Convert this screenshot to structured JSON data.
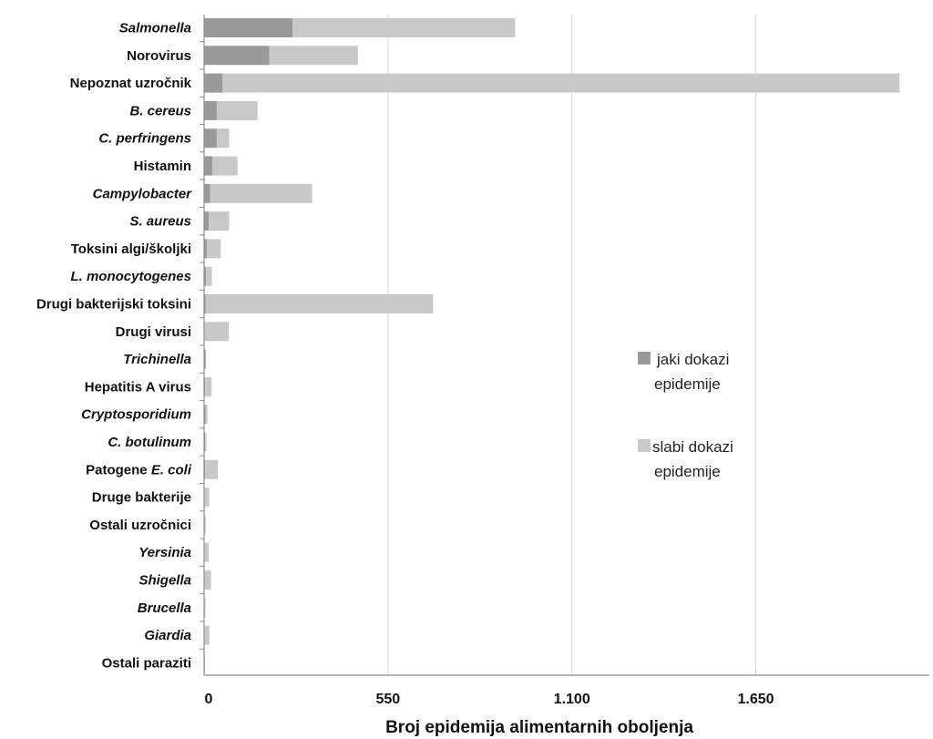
{
  "chart_data": {
    "type": "bar",
    "orientation": "horizontal",
    "stacked": true,
    "xlabel": "Broj epidemija alimentarnih oboljenja",
    "xlim": [
      0,
      2100
    ],
    "xticks": [
      {
        "value": 0,
        "label": "0"
      },
      {
        "value": 550,
        "label": "550"
      },
      {
        "value": 1100,
        "label": "1.100"
      },
      {
        "value": 1650,
        "label": "1.650"
      }
    ],
    "grid": "vertical",
    "legend_position": "right",
    "legend": [
      {
        "lines": [
          "jaki dokazi",
          "epidemije"
        ],
        "series": 0
      },
      {
        "lines": [
          "slabi dokazi",
          "epidemije"
        ],
        "series": 1
      }
    ],
    "categories": [
      {
        "parts": [
          {
            "text": "Salmonella",
            "italic": true
          }
        ]
      },
      {
        "parts": [
          {
            "text": "Norovirus",
            "italic": false
          }
        ]
      },
      {
        "parts": [
          {
            "text": "Nepoznat uzročnik",
            "italic": false
          }
        ]
      },
      {
        "parts": [
          {
            "text": "B. cereus",
            "italic": true
          }
        ]
      },
      {
        "parts": [
          {
            "text": "C. perfringens",
            "italic": true
          }
        ]
      },
      {
        "parts": [
          {
            "text": "Histamin",
            "italic": false
          }
        ]
      },
      {
        "parts": [
          {
            "text": "Campylobacter",
            "italic": true
          }
        ]
      },
      {
        "parts": [
          {
            "text": "S. aureus",
            "italic": true
          }
        ]
      },
      {
        "parts": [
          {
            "text": "Toksini algi/školjki",
            "italic": false
          }
        ]
      },
      {
        "parts": [
          {
            "text": "L. monocytogenes",
            "italic": true
          }
        ]
      },
      {
        "parts": [
          {
            "text": "Drugi bakterijski toksini",
            "italic": false
          }
        ]
      },
      {
        "parts": [
          {
            "text": "Drugi virusi",
            "italic": false
          }
        ]
      },
      {
        "parts": [
          {
            "text": "Trichinella",
            "italic": true
          }
        ]
      },
      {
        "parts": [
          {
            "text": "Hepatitis A virus",
            "italic": false
          }
        ]
      },
      {
        "parts": [
          {
            "text": "Cryptosporidium",
            "italic": true
          }
        ]
      },
      {
        "parts": [
          {
            "text": "C. botulinum",
            "italic": true
          }
        ]
      },
      {
        "parts": [
          {
            "text": "Patogene ",
            "italic": false
          },
          {
            "text": "E. coli",
            "italic": true
          }
        ]
      },
      {
        "parts": [
          {
            "text": "Druge bakterije",
            "italic": false
          }
        ]
      },
      {
        "parts": [
          {
            "text": "Ostali uzročnici",
            "italic": false
          }
        ]
      },
      {
        "parts": [
          {
            "text": "Yersinia",
            "italic": true
          }
        ]
      },
      {
        "parts": [
          {
            "text": "Shigella",
            "italic": true
          }
        ]
      },
      {
        "parts": [
          {
            "text": "Brucella",
            "italic": true
          }
        ]
      },
      {
        "parts": [
          {
            "text": "Giardia",
            "italic": true
          }
        ]
      },
      {
        "parts": [
          {
            "text": "Ostali paraziti",
            "italic": false
          }
        ]
      }
    ],
    "series": [
      {
        "color": "#999999",
        "values": [
          265,
          195,
          55,
          38,
          38,
          25,
          18,
          14,
          8,
          6,
          5,
          0,
          4,
          3,
          4,
          3,
          3,
          2,
          2,
          2,
          2,
          1,
          2,
          1
        ]
      },
      {
        "color": "#c8c8c8",
        "values": [
          665,
          265,
          2025,
          122,
          37,
          75,
          305,
          61,
          42,
          17,
          680,
          74,
          2,
          19,
          6,
          4,
          38,
          13,
          3,
          12,
          19,
          3,
          14,
          2
        ]
      }
    ]
  }
}
